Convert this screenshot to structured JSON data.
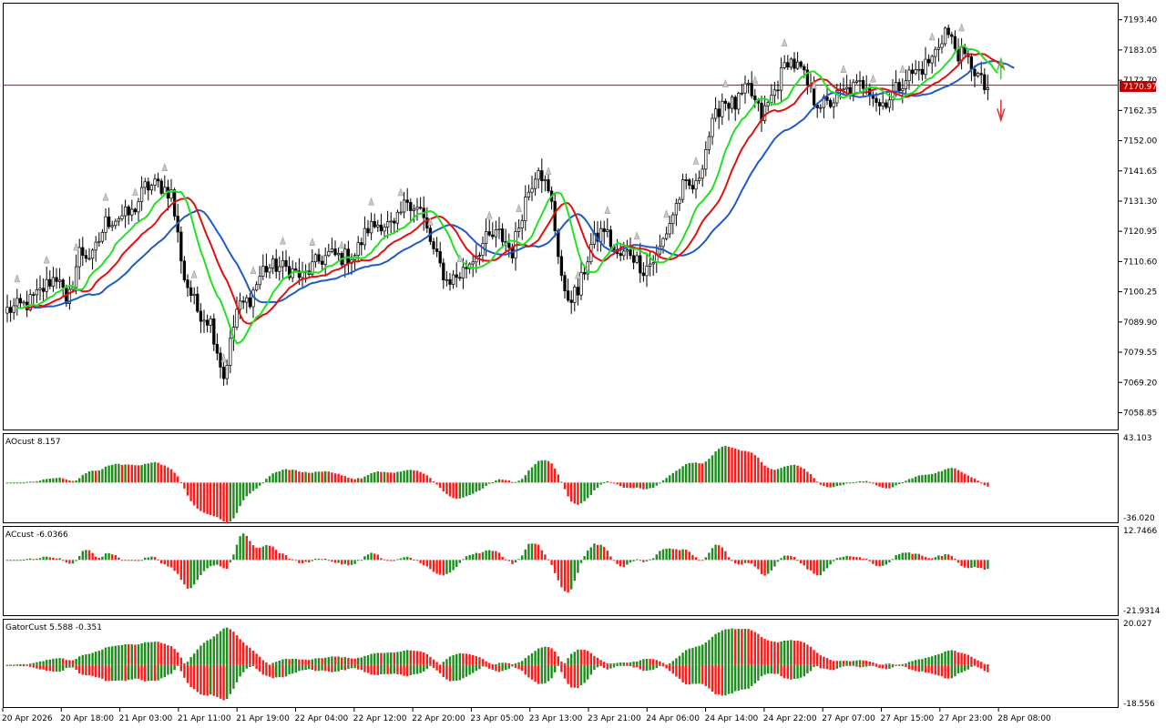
{
  "price_panel": {
    "current_price_label": "7170.97",
    "current_price": 7170.97,
    "y_ticks": [
      "7193.40",
      "7183.05",
      "7172.70",
      "7162.35",
      "7152.00",
      "7141.65",
      "7131.30",
      "7120.95",
      "7110.60",
      "7100.25",
      "7089.90",
      "7079.55",
      "7069.20",
      "7058.85"
    ],
    "ylim": [
      7053.7,
      7198.6
    ]
  },
  "ao_panel": {
    "title": "AOcust 8.157",
    "y_max_label": "43.103",
    "y_min_label": "-36.020",
    "ylim": [
      -36.02,
      43.103
    ]
  },
  "ac_panel": {
    "title": "ACcust -6.0366",
    "y_max_label": "12.7466",
    "y_min_label": "-21.9314",
    "ylim": [
      -21.9314,
      12.7466
    ]
  },
  "gator_panel": {
    "title": "GatorCust 5.588 -0.351",
    "y_max_label": "20.027",
    "y_min_label": "-18.556",
    "ylim": [
      -18.556,
      20.027
    ]
  },
  "time_labels": [
    "20 Apr 2026",
    "20 Apr 18:00",
    "21 Apr 03:00",
    "21 Apr 11:00",
    "21 Apr 19:00",
    "22 Apr 04:00",
    "22 Apr 12:00",
    "22 Apr 20:00",
    "23 Apr 05:00",
    "23 Apr 13:00",
    "23 Apr 21:00",
    "24 Apr 06:00",
    "24 Apr 14:00",
    "24 Apr 22:00",
    "27 Apr 07:00",
    "27 Apr 15:00",
    "27 Apr 23:00",
    "28 Apr 08:00"
  ],
  "colors": {
    "jaw": "#1f5bc6",
    "teeth": "#e01010",
    "lips": "#22e022",
    "up_bar": "#1e8c1e",
    "down_bar": "#ff1a1a",
    "price_line": "#c00000",
    "arrow_up": "#50c050",
    "arrow_down": "#e03030"
  },
  "chart_data": {
    "type": "candlestick",
    "anchors": [
      [
        0,
        7094
      ],
      [
        6,
        7096
      ],
      [
        10,
        7100
      ],
      [
        13,
        7104
      ],
      [
        16,
        7106
      ],
      [
        18,
        7094
      ],
      [
        22,
        7114
      ],
      [
        26,
        7112
      ],
      [
        30,
        7124
      ],
      [
        34,
        7126
      ],
      [
        38,
        7127
      ],
      [
        42,
        7136
      ],
      [
        46,
        7137
      ],
      [
        50,
        7134
      ],
      [
        54,
        7105
      ],
      [
        58,
        7094
      ],
      [
        62,
        7090
      ],
      [
        66,
        7071
      ],
      [
        70,
        7094
      ],
      [
        74,
        7098
      ],
      [
        78,
        7108
      ],
      [
        82,
        7109
      ],
      [
        86,
        7108
      ],
      [
        90,
        7105
      ],
      [
        94,
        7110
      ],
      [
        98,
        7113
      ],
      [
        102,
        7112
      ],
      [
        106,
        7113
      ],
      [
        110,
        7122
      ],
      [
        114,
        7124
      ],
      [
        118,
        7122
      ],
      [
        122,
        7132
      ],
      [
        126,
        7128
      ],
      [
        130,
        7114
      ],
      [
        134,
        7104
      ],
      [
        138,
        7106
      ],
      [
        142,
        7112
      ],
      [
        146,
        7118
      ],
      [
        150,
        7120
      ],
      [
        154,
        7114
      ],
      [
        158,
        7132
      ],
      [
        162,
        7144
      ],
      [
        166,
        7130
      ],
      [
        170,
        7098
      ],
      [
        174,
        7100
      ],
      [
        178,
        7116
      ],
      [
        182,
        7122
      ],
      [
        186,
        7112
      ],
      [
        190,
        7114
      ],
      [
        194,
        7108
      ],
      [
        198,
        7112
      ],
      [
        202,
        7124
      ],
      [
        206,
        7136
      ],
      [
        210,
        7136
      ],
      [
        214,
        7154
      ],
      [
        218,
        7166
      ],
      [
        222,
        7164
      ],
      [
        226,
        7170
      ],
      [
        230,
        7160
      ],
      [
        234,
        7169
      ],
      [
        238,
        7180
      ],
      [
        242,
        7176
      ],
      [
        246,
        7166
      ],
      [
        250,
        7164
      ],
      [
        254,
        7168
      ],
      [
        258,
        7170
      ],
      [
        262,
        7172
      ],
      [
        266,
        7164
      ],
      [
        270,
        7168
      ],
      [
        274,
        7174
      ],
      [
        278,
        7176
      ],
      [
        282,
        7180
      ],
      [
        286,
        7190
      ],
      [
        290,
        7182
      ],
      [
        294,
        7178
      ],
      [
        298,
        7170
      ]
    ],
    "bar_count": 300
  }
}
